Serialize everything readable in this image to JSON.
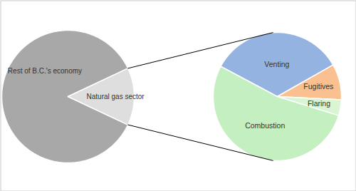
{
  "chart_data": [
    {
      "type": "pie",
      "categories": [
        "Rest of B.C.'s economy",
        "Natural gas sector"
      ],
      "values": [
        86,
        14
      ],
      "colors": [
        "#a8a8a8",
        "#dedede"
      ]
    },
    {
      "type": "pie",
      "categories": [
        "Venting",
        "Fugitives",
        "Flaring",
        "Combustion"
      ],
      "values": [
        34,
        9,
        4,
        53
      ],
      "colors": [
        "#95b3e0",
        "#fac090",
        "#d9f5d3",
        "#c4efc0"
      ]
    }
  ]
}
